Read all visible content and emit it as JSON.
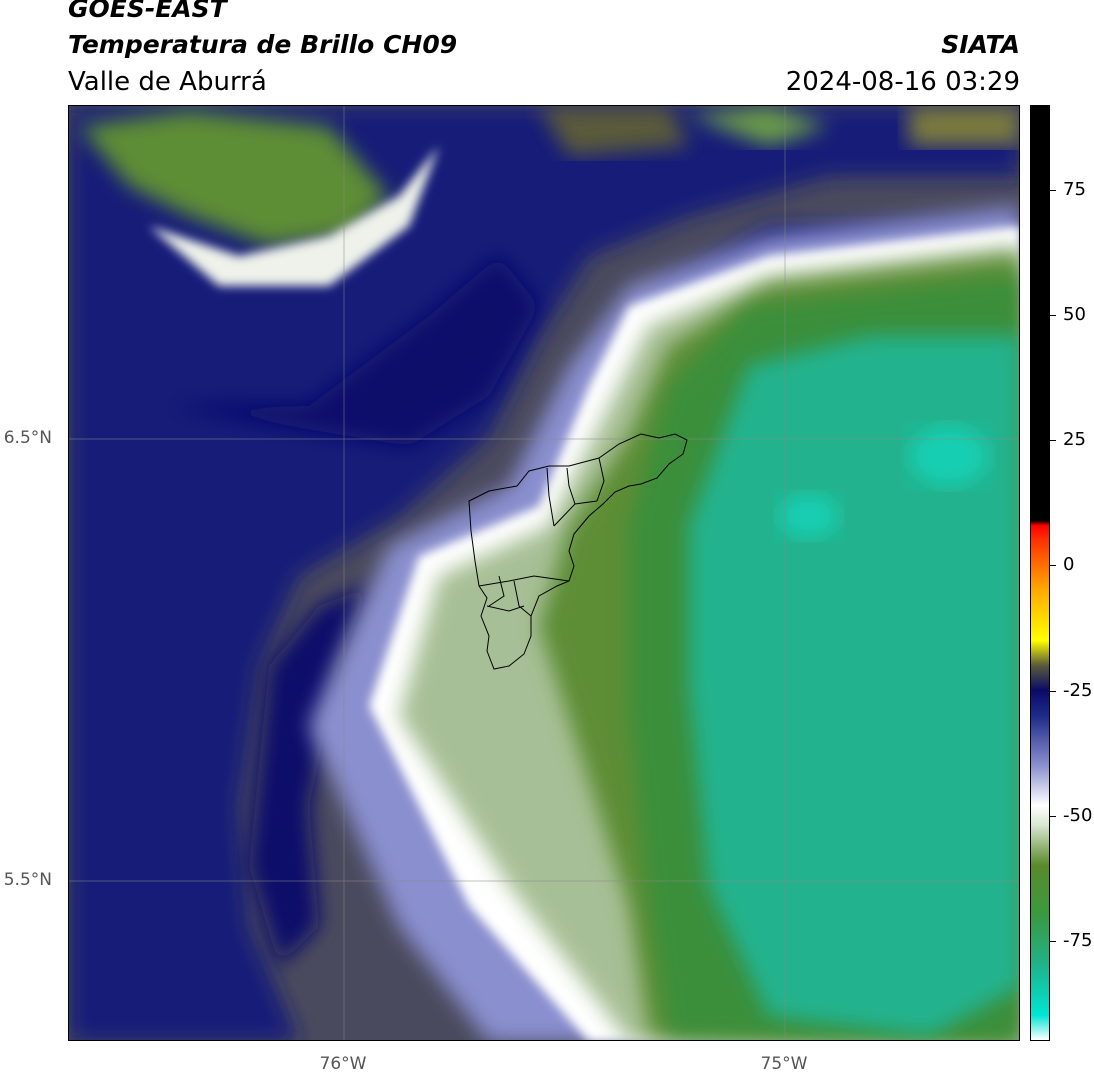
{
  "header": {
    "title1": "GOES-EAST",
    "title2": "Temperatura de Brillo CH09",
    "subtitle": "Valle de Aburrá",
    "agency": "SIATA",
    "datetime": "2024-08-16 03:29"
  },
  "axes": {
    "lat_labels": [
      "6.5°N",
      "5.5°N"
    ],
    "lon_labels": [
      "76°W",
      "75°W"
    ]
  },
  "colorbar": {
    "tick_labels": [
      "75",
      "50",
      "25",
      "0",
      "-25",
      "-50",
      "-75"
    ],
    "tick_values": [
      75,
      50,
      25,
      0,
      -25,
      -50,
      -75
    ],
    "range": [
      -95,
      92
    ],
    "stops": [
      {
        "v": -95,
        "c": "#ffffff"
      },
      {
        "v": -90,
        "c": "#00e5d4"
      },
      {
        "v": -80,
        "c": "#1fb38a"
      },
      {
        "v": -70,
        "c": "#3a9a40"
      },
      {
        "v": -60,
        "c": "#5a8a2a"
      },
      {
        "v": -52,
        "c": "#d8e6d0"
      },
      {
        "v": -48,
        "c": "#ffffff"
      },
      {
        "v": -40,
        "c": "#8a8fcf"
      },
      {
        "v": -30,
        "c": "#1e2a8a"
      },
      {
        "v": -25,
        "c": "#0a0a6a"
      },
      {
        "v": -20,
        "c": "#5a5a3a"
      },
      {
        "v": -15,
        "c": "#ffff00"
      },
      {
        "v": -5,
        "c": "#ffaa00"
      },
      {
        "v": 5,
        "c": "#ff3300"
      },
      {
        "v": 8,
        "c": "#ff0000"
      },
      {
        "v": 9,
        "c": "#000000"
      },
      {
        "v": 92,
        "c": "#000000"
      }
    ]
  },
  "colors": {
    "gray_region": "#4a4a5e",
    "navy": "#141a78",
    "deep_navy": "#0c0f6a",
    "white_band": "#ffffff",
    "light_green": "#a7bf96",
    "mid_green": "#5d8d36",
    "green": "#3a8f3a",
    "teal": "#20b38e",
    "olive": "#7a7a3e"
  }
}
